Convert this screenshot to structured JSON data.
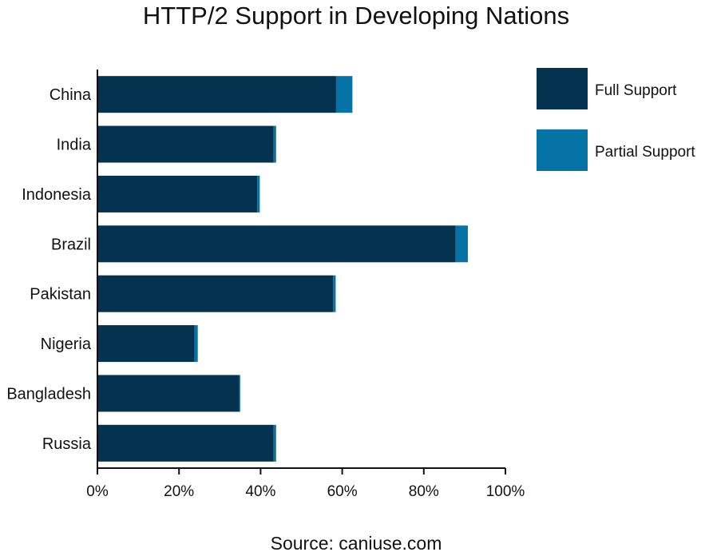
{
  "chart_data": {
    "type": "bar",
    "orientation": "horizontal",
    "stacked": true,
    "title": "HTTP/2 Support in Developing Nations",
    "source": "Source: caniuse.com",
    "categories": [
      "China",
      "India",
      "Indonesia",
      "Brazil",
      "Pakistan",
      "Nigeria",
      "Bangladesh",
      "Russia"
    ],
    "series": [
      {
        "name": "Full Support",
        "color": "#03334f",
        "values": [
          58.5,
          43.2,
          39.2,
          87.8,
          57.8,
          23.8,
          34.8,
          43.2
        ]
      },
      {
        "name": "Partial Support",
        "color": "#0673a7",
        "values": [
          4.0,
          0.6,
          0.6,
          3.0,
          0.6,
          0.8,
          0.2,
          0.6
        ]
      }
    ],
    "xlim": [
      0,
      100
    ],
    "xticks": [
      {
        "value": 0,
        "label": "0%"
      },
      {
        "value": 20,
        "label": "20%"
      },
      {
        "value": 40,
        "label": "40%"
      },
      {
        "value": 60,
        "label": "60%"
      },
      {
        "value": 80,
        "label": "80%"
      },
      {
        "value": 100,
        "label": "100%"
      }
    ],
    "xlabel": "",
    "ylabel": "",
    "grid": false,
    "legend_position": "top-right"
  }
}
